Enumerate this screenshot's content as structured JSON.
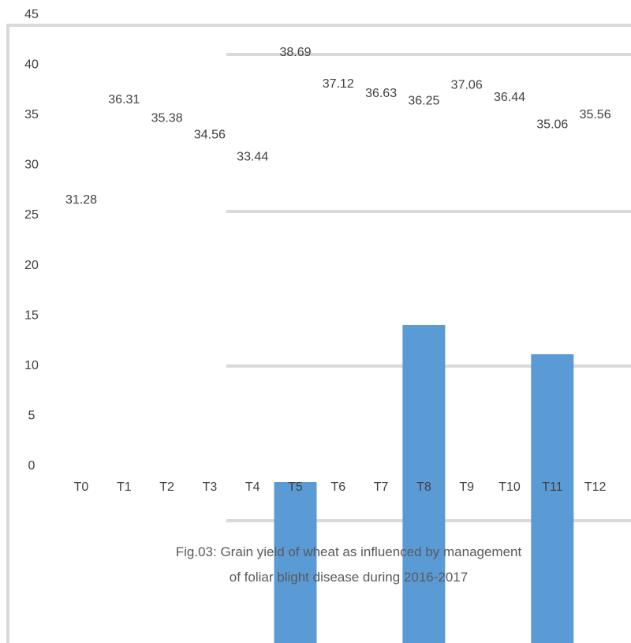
{
  "chart_data": {
    "type": "bar",
    "title": "",
    "xlabel": "",
    "ylabel": "",
    "ylim": [
      0,
      45
    ],
    "yticks": [
      0,
      5,
      10,
      15,
      20,
      25,
      30,
      35,
      40,
      45
    ],
    "grid": false,
    "legend": "none",
    "categories": [
      "T0",
      "T1",
      "T2",
      "T3",
      "T4",
      "T5",
      "T6",
      "T7",
      "T8",
      "T9",
      "T10",
      "T11",
      "T12"
    ],
    "values": [
      31.28,
      36.31,
      35.38,
      34.56,
      33.44,
      38.69,
      37.12,
      36.63,
      36.25,
      37.06,
      36.44,
      35.06,
      35.56
    ],
    "data_labels": [
      "31.28",
      "36.31",
      "35.38",
      "34.56",
      "33.44",
      "38.69",
      "37.12",
      "36.63",
      "36.25",
      "37.06",
      "36.44",
      "35.06",
      "35.56"
    ],
    "bar_color": "#5b9bd5",
    "caption": [
      "Fig.03: Grain yield of wheat as influenced by management",
      "of foliar blight disease during 2016-2017"
    ]
  }
}
